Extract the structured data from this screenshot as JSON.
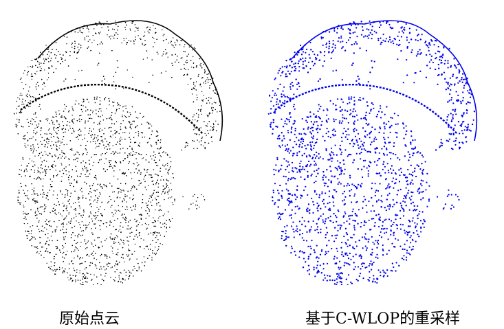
{
  "figure": {
    "left_caption": "原始点云",
    "right_caption": "基于C-WLOP的重采样"
  },
  "colors": {
    "original_points": "#000000",
    "resampled_points": "#0000ee",
    "background": "#ffffff"
  }
}
